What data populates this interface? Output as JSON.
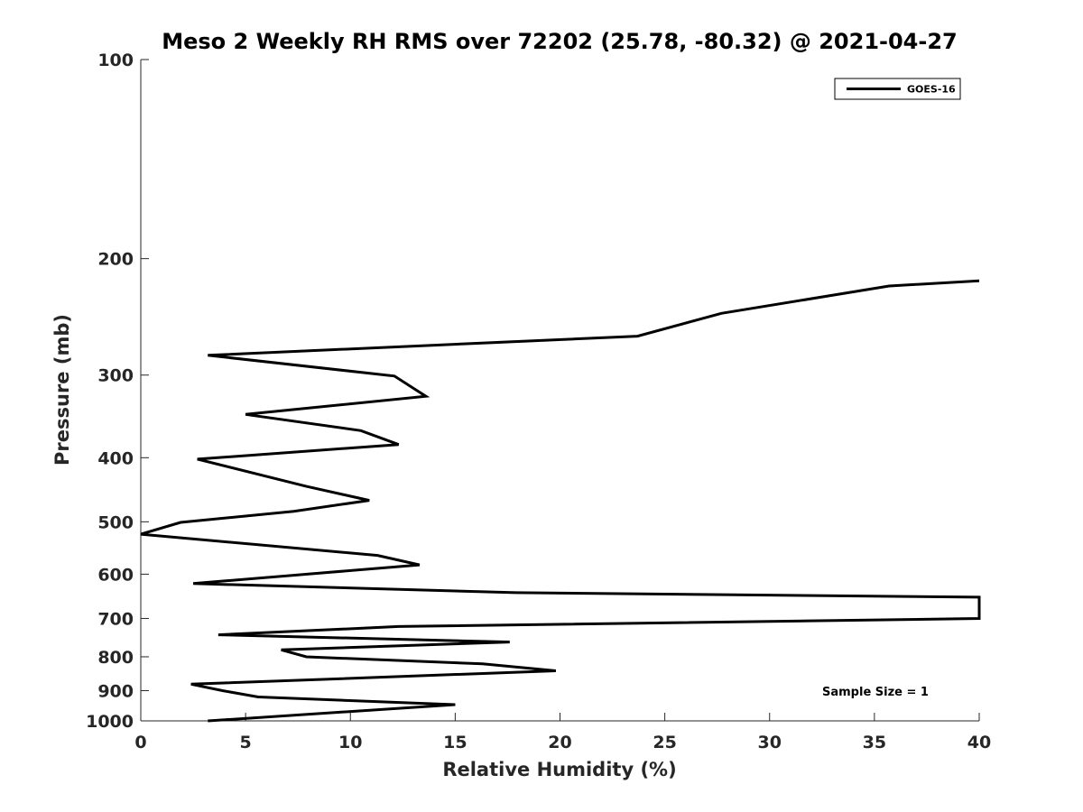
{
  "chart_data": {
    "type": "line",
    "title": "Meso 2 Weekly RH RMS over 72202 (25.78, -80.32) @ 2021-04-27",
    "xlabel": "Relative Humidity (%)",
    "ylabel": "Pressure (mb)",
    "xlim": [
      0,
      40
    ],
    "ylim": [
      100,
      1000
    ],
    "y_scale": "log",
    "y_reversed": true,
    "grid": false,
    "legend_position": "top-right",
    "x_ticks": [
      0,
      5,
      10,
      15,
      20,
      25,
      30,
      35,
      40
    ],
    "y_ticks": [
      100,
      200,
      300,
      400,
      500,
      600,
      700,
      800,
      900,
      1000
    ],
    "series": [
      {
        "name": "GOES-16",
        "color": "#000000",
        "points": [
          {
            "x": 40.0,
            "y": 216
          },
          {
            "x": 35.7,
            "y": 220
          },
          {
            "x": 27.7,
            "y": 242
          },
          {
            "x": 23.7,
            "y": 262
          },
          {
            "x": 3.2,
            "y": 280
          },
          {
            "x": 12.1,
            "y": 301
          },
          {
            "x": 13.6,
            "y": 323
          },
          {
            "x": 5.0,
            "y": 344
          },
          {
            "x": 10.5,
            "y": 364
          },
          {
            "x": 12.3,
            "y": 382
          },
          {
            "x": 2.7,
            "y": 402
          },
          {
            "x": 7.9,
            "y": 442
          },
          {
            "x": 10.9,
            "y": 464
          },
          {
            "x": 7.3,
            "y": 482
          },
          {
            "x": 1.9,
            "y": 501
          },
          {
            "x": 0.0,
            "y": 522
          },
          {
            "x": 11.3,
            "y": 562
          },
          {
            "x": 13.3,
            "y": 581
          },
          {
            "x": 2.5,
            "y": 620
          },
          {
            "x": 17.9,
            "y": 640
          },
          {
            "x": 40.0,
            "y": 650
          },
          {
            "x": 40.0,
            "y": 700
          },
          {
            "x": 12.3,
            "y": 720
          },
          {
            "x": 3.7,
            "y": 741
          },
          {
            "x": 17.6,
            "y": 760
          },
          {
            "x": 6.7,
            "y": 781
          },
          {
            "x": 7.9,
            "y": 800
          },
          {
            "x": 16.3,
            "y": 820
          },
          {
            "x": 19.8,
            "y": 840
          },
          {
            "x": 2.4,
            "y": 880
          },
          {
            "x": 3.9,
            "y": 900
          },
          {
            "x": 5.6,
            "y": 920
          },
          {
            "x": 15.0,
            "y": 945
          },
          {
            "x": 3.2,
            "y": 1000
          }
        ]
      }
    ],
    "annotations": [
      "Sample Size = 1"
    ]
  }
}
